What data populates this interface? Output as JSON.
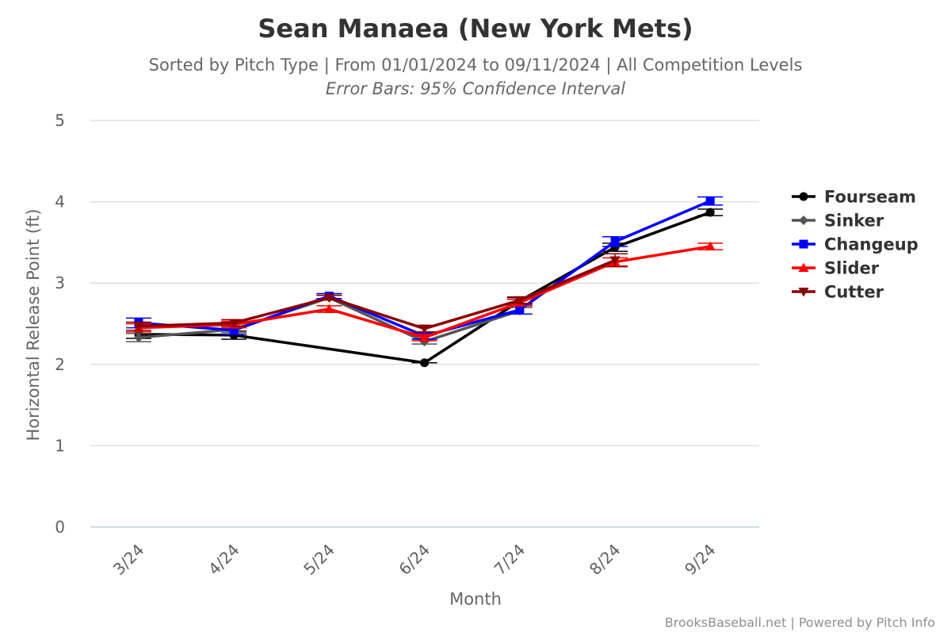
{
  "chart_data": {
    "type": "line",
    "title": "Sean Manaea (New York Mets)",
    "subtitle": "Sorted by Pitch Type | From 01/01/2024 to 09/11/2024 | All Competition Levels",
    "subtitle2": "Error Bars: 95% Confidence Interval",
    "xlabel": "Month",
    "ylabel": "Horizontal Release Point (ft)",
    "categories": [
      "3/24",
      "4/24",
      "5/24",
      "6/24",
      "7/24",
      "8/24",
      "9/24"
    ],
    "ylim": [
      0,
      5
    ],
    "yticks": [
      0,
      1,
      2,
      3,
      4,
      5
    ],
    "grid": true,
    "legend_position": "right",
    "series": [
      {
        "name": "Fourseam",
        "color": "#000000",
        "marker": "circle",
        "values": [
          2.37,
          2.36,
          null,
          2.02,
          2.78,
          3.44,
          3.87
        ],
        "errors": [
          0.05,
          0.05,
          null,
          0,
          0.04,
          0.05,
          0.04
        ]
      },
      {
        "name": "Sinker",
        "color": "#555555",
        "marker": "diamond",
        "values": [
          2.33,
          2.43,
          2.82,
          2.28,
          2.66,
          null,
          null
        ],
        "errors": [
          0.05,
          0.04,
          0.03,
          0.03,
          0.04,
          null,
          null
        ]
      },
      {
        "name": "Changeup",
        "color": "#0000ff",
        "marker": "square",
        "values": [
          2.51,
          2.42,
          2.84,
          2.35,
          2.67,
          3.51,
          4.01
        ],
        "errors": [
          0.06,
          0.05,
          0.03,
          0.04,
          0.05,
          0.06,
          0.05
        ]
      },
      {
        "name": "Slider",
        "color": "#ff0000",
        "marker": "triangle",
        "values": [
          2.45,
          2.49,
          2.68,
          2.33,
          2.76,
          3.26,
          3.45
        ],
        "errors": [
          0.05,
          0.04,
          0.04,
          0.04,
          0.04,
          0.05,
          0.04
        ]
      },
      {
        "name": "Cutter",
        "color": "#8b0000",
        "marker": "triangle-down",
        "values": [
          2.47,
          2.51,
          2.82,
          2.44,
          2.79,
          3.28,
          null
        ],
        "errors": [
          0.05,
          0.04,
          0.03,
          0.04,
          0.04,
          0.08,
          null
        ]
      }
    ]
  },
  "credits": "BrooksBaseball.net | Powered by Pitch Info"
}
